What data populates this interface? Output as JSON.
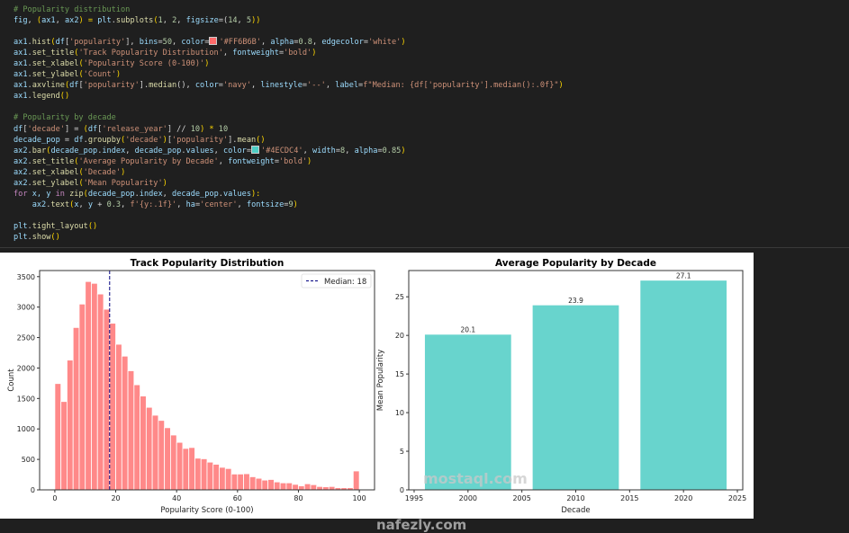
{
  "code": {
    "lines": [
      [
        [
          "# Popularity distribution",
          "c"
        ]
      ],
      [
        [
          "fig",
          "v"
        ],
        [
          ", ",
          "p"
        ],
        [
          "(",
          "b"
        ],
        [
          "ax1",
          "v"
        ],
        [
          ", ",
          "p"
        ],
        [
          "ax2",
          "v"
        ],
        [
          ") = ",
          "b"
        ],
        [
          "plt",
          "v"
        ],
        [
          ".",
          "p"
        ],
        [
          "subplots",
          "f"
        ],
        [
          "(",
          "b"
        ],
        [
          "1",
          "n"
        ],
        [
          ", ",
          "p"
        ],
        [
          "2",
          "n"
        ],
        [
          ", ",
          "p"
        ],
        [
          "figsize",
          "v"
        ],
        [
          "=(",
          "p"
        ],
        [
          "14",
          "n"
        ],
        [
          ", ",
          "p"
        ],
        [
          "5",
          "n"
        ],
        [
          "))",
          "b"
        ]
      ],
      [],
      [
        [
          "ax1",
          "v"
        ],
        [
          ".",
          "p"
        ],
        [
          "hist",
          "f"
        ],
        [
          "(",
          "b"
        ],
        [
          "df",
          "v"
        ],
        [
          "[",
          "p"
        ],
        [
          "'popularity'",
          "s"
        ],
        [
          "], ",
          "p"
        ],
        [
          "bins",
          "v"
        ],
        [
          "=",
          "p"
        ],
        [
          "50",
          "n"
        ],
        [
          ", ",
          "p"
        ],
        [
          "color",
          "v"
        ],
        [
          "=",
          "p"
        ],
        [
          "#FF6B6B",
          "sw"
        ],
        [
          "'#FF6B6B'",
          "s"
        ],
        [
          ", ",
          "p"
        ],
        [
          "alpha",
          "v"
        ],
        [
          "=",
          "p"
        ],
        [
          "0.8",
          "n"
        ],
        [
          ", ",
          "p"
        ],
        [
          "edgecolor",
          "v"
        ],
        [
          "=",
          "p"
        ],
        [
          "'white'",
          "s"
        ],
        [
          ")",
          "b"
        ]
      ],
      [
        [
          "ax1",
          "v"
        ],
        [
          ".",
          "p"
        ],
        [
          "set_title",
          "f"
        ],
        [
          "(",
          "b"
        ],
        [
          "'Track Popularity Distribution'",
          "s"
        ],
        [
          ", ",
          "p"
        ],
        [
          "fontweight",
          "v"
        ],
        [
          "=",
          "p"
        ],
        [
          "'bold'",
          "s"
        ],
        [
          ")",
          "b"
        ]
      ],
      [
        [
          "ax1",
          "v"
        ],
        [
          ".",
          "p"
        ],
        [
          "set_xlabel",
          "f"
        ],
        [
          "(",
          "b"
        ],
        [
          "'Popularity Score (0-100)'",
          "s"
        ],
        [
          ")",
          "b"
        ]
      ],
      [
        [
          "ax1",
          "v"
        ],
        [
          ".",
          "p"
        ],
        [
          "set_ylabel",
          "f"
        ],
        [
          "(",
          "b"
        ],
        [
          "'Count'",
          "s"
        ],
        [
          ")",
          "b"
        ]
      ],
      [
        [
          "ax1",
          "v"
        ],
        [
          ".",
          "p"
        ],
        [
          "axvline",
          "f"
        ],
        [
          "(",
          "b"
        ],
        [
          "df",
          "v"
        ],
        [
          "[",
          "p"
        ],
        [
          "'popularity'",
          "s"
        ],
        [
          "].",
          "p"
        ],
        [
          "median",
          "f"
        ],
        [
          "(), ",
          "p"
        ],
        [
          "color",
          "v"
        ],
        [
          "=",
          "p"
        ],
        [
          "'navy'",
          "s"
        ],
        [
          ", ",
          "p"
        ],
        [
          "linestyle",
          "v"
        ],
        [
          "=",
          "p"
        ],
        [
          "'--'",
          "s"
        ],
        [
          ", ",
          "p"
        ],
        [
          "label",
          "v"
        ],
        [
          "=",
          "p"
        ],
        [
          "f\"Median: {df['popularity'].median():.0f}\"",
          "s"
        ],
        [
          ")",
          "b"
        ]
      ],
      [
        [
          "ax1",
          "v"
        ],
        [
          ".",
          "p"
        ],
        [
          "legend",
          "f"
        ],
        [
          "()",
          "b"
        ]
      ],
      [],
      [
        [
          "# Popularity by decade",
          "c"
        ]
      ],
      [
        [
          "df",
          "v"
        ],
        [
          "[",
          "p"
        ],
        [
          "'decade'",
          "s"
        ],
        [
          "] = ",
          "p"
        ],
        [
          "(",
          "b"
        ],
        [
          "df",
          "v"
        ],
        [
          "[",
          "p"
        ],
        [
          "'release_year'",
          "s"
        ],
        [
          "] // ",
          "p"
        ],
        [
          "10",
          "n"
        ],
        [
          ") * ",
          "b"
        ],
        [
          "10",
          "n"
        ]
      ],
      [
        [
          "decade_pop",
          "v"
        ],
        [
          " = ",
          "p"
        ],
        [
          "df",
          "v"
        ],
        [
          ".",
          "p"
        ],
        [
          "groupby",
          "f"
        ],
        [
          "(",
          "b"
        ],
        [
          "'decade'",
          "s"
        ],
        [
          ")",
          "b"
        ],
        [
          "[",
          "p"
        ],
        [
          "'popularity'",
          "s"
        ],
        [
          "].",
          "p"
        ],
        [
          "mean",
          "f"
        ],
        [
          "()",
          "b"
        ]
      ],
      [
        [
          "ax2",
          "v"
        ],
        [
          ".",
          "p"
        ],
        [
          "bar",
          "f"
        ],
        [
          "(",
          "b"
        ],
        [
          "decade_pop",
          "v"
        ],
        [
          ".",
          "p"
        ],
        [
          "index",
          "v"
        ],
        [
          ", ",
          "p"
        ],
        [
          "decade_pop",
          "v"
        ],
        [
          ".",
          "p"
        ],
        [
          "values",
          "v"
        ],
        [
          ", ",
          "p"
        ],
        [
          "color",
          "v"
        ],
        [
          "=",
          "p"
        ],
        [
          "#4ECDC4",
          "sw"
        ],
        [
          "'#4ECDC4'",
          "s"
        ],
        [
          ", ",
          "p"
        ],
        [
          "width",
          "v"
        ],
        [
          "=",
          "p"
        ],
        [
          "8",
          "n"
        ],
        [
          ", ",
          "p"
        ],
        [
          "alpha",
          "v"
        ],
        [
          "=",
          "p"
        ],
        [
          "0.85",
          "n"
        ],
        [
          ")",
          "b"
        ]
      ],
      [
        [
          "ax2",
          "v"
        ],
        [
          ".",
          "p"
        ],
        [
          "set_title",
          "f"
        ],
        [
          "(",
          "b"
        ],
        [
          "'Average Popularity by Decade'",
          "s"
        ],
        [
          ", ",
          "p"
        ],
        [
          "fontweight",
          "v"
        ],
        [
          "=",
          "p"
        ],
        [
          "'bold'",
          "s"
        ],
        [
          ")",
          "b"
        ]
      ],
      [
        [
          "ax2",
          "v"
        ],
        [
          ".",
          "p"
        ],
        [
          "set_xlabel",
          "f"
        ],
        [
          "(",
          "b"
        ],
        [
          "'Decade'",
          "s"
        ],
        [
          ")",
          "b"
        ]
      ],
      [
        [
          "ax2",
          "v"
        ],
        [
          ".",
          "p"
        ],
        [
          "set_ylabel",
          "f"
        ],
        [
          "(",
          "b"
        ],
        [
          "'Mean Popularity'",
          "s"
        ],
        [
          ")",
          "b"
        ]
      ],
      [
        [
          "for",
          "k"
        ],
        [
          " x, y ",
          "v"
        ],
        [
          "in",
          "k"
        ],
        [
          " ",
          "p"
        ],
        [
          "zip",
          "f"
        ],
        [
          "(",
          "b"
        ],
        [
          "decade_pop",
          "v"
        ],
        [
          ".",
          "p"
        ],
        [
          "index",
          "v"
        ],
        [
          ", ",
          "p"
        ],
        [
          "decade_pop",
          "v"
        ],
        [
          ".",
          "p"
        ],
        [
          "values",
          "v"
        ],
        [
          "):",
          "b"
        ]
      ],
      [
        [
          "    ",
          "p"
        ],
        [
          "ax2",
          "v"
        ],
        [
          ".",
          "p"
        ],
        [
          "text",
          "f"
        ],
        [
          "(",
          "b"
        ],
        [
          "x",
          "v"
        ],
        [
          ", ",
          "p"
        ],
        [
          "y",
          "v"
        ],
        [
          " + ",
          "p"
        ],
        [
          "0.3",
          "n"
        ],
        [
          ", ",
          "p"
        ],
        [
          "f'{y:.1f}'",
          "s"
        ],
        [
          ", ",
          "p"
        ],
        [
          "ha",
          "v"
        ],
        [
          "=",
          "p"
        ],
        [
          "'center'",
          "s"
        ],
        [
          ", ",
          "p"
        ],
        [
          "fontsize",
          "v"
        ],
        [
          "=",
          "p"
        ],
        [
          "9",
          "n"
        ],
        [
          ")",
          "b"
        ]
      ],
      [],
      [
        [
          "plt",
          "v"
        ],
        [
          ".",
          "p"
        ],
        [
          "tight_layout",
          "f"
        ],
        [
          "()",
          "b"
        ]
      ],
      [
        [
          "plt",
          "v"
        ],
        [
          ".",
          "p"
        ],
        [
          "show",
          "f"
        ],
        [
          "()",
          "b"
        ]
      ]
    ]
  },
  "chart_data": [
    {
      "type": "bar",
      "title": "Track Popularity Distribution",
      "xlabel": "Popularity Score (0-100)",
      "ylabel": "Count",
      "bin_start": 0,
      "bin_width": 2,
      "values": [
        1745,
        1450,
        2130,
        2665,
        3050,
        3420,
        3390,
        3215,
        2965,
        2735,
        2390,
        2195,
        1955,
        1725,
        1540,
        1355,
        1225,
        1140,
        1020,
        900,
        780,
        680,
        695,
        520,
        510,
        455,
        420,
        370,
        350,
        260,
        260,
        265,
        215,
        190,
        160,
        170,
        130,
        115,
        115,
        90,
        65,
        100,
        85,
        55,
        50,
        55,
        35,
        35,
        35,
        310
      ],
      "xlim": [
        -5,
        105
      ],
      "ylim": [
        0,
        3600
      ],
      "xticks": [
        0,
        20,
        40,
        60,
        80,
        100
      ],
      "yticks": [
        0,
        500,
        1000,
        1500,
        2000,
        2500,
        3000,
        3500
      ],
      "color": "#FF6B6B",
      "alpha": 0.8,
      "median_line": {
        "x": 18,
        "color": "navy",
        "label": "Median: 18"
      },
      "legend": "top-right",
      "grid": false
    },
    {
      "type": "bar",
      "title": "Average Popularity by Decade",
      "xlabel": "Decade",
      "ylabel": "Mean Popularity",
      "categories": [
        2000,
        2010,
        2020
      ],
      "values": [
        20.1,
        23.9,
        27.1
      ],
      "data_labels": [
        "20.1",
        "23.9",
        "27.1"
      ],
      "bar_width": 8,
      "xlim": [
        1994.5,
        2025.5
      ],
      "ylim": [
        0,
        28.4
      ],
      "xticks": [
        1995,
        2000,
        2005,
        2010,
        2015,
        2020,
        2025
      ],
      "yticks": [
        0,
        5,
        10,
        15,
        20,
        25
      ],
      "color": "#4ECDC4",
      "alpha": 0.85,
      "grid": false
    }
  ],
  "watermark": {
    "line1": "mostaql.com",
    "line2": "nafezly.com"
  }
}
